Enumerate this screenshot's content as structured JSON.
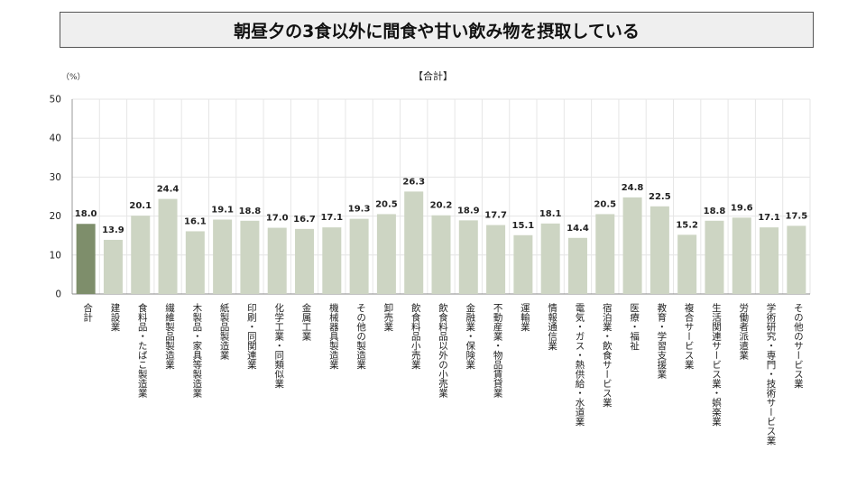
{
  "header": {
    "title": "朝昼夕の3食以外に間食や甘い飲み物を摂取している"
  },
  "chart_data": {
    "type": "bar",
    "title": "【合計】",
    "unit_label": "（%）",
    "ylim": [
      0,
      50
    ],
    "yticks": [
      0,
      10,
      20,
      30,
      40,
      50
    ],
    "grid": true,
    "highlight_color": "#7e8e6b",
    "bar_color": "#cdd5c3",
    "categories": [
      "合計",
      "建設業",
      "食料品・たばこ製造業",
      "繊維製品製造業",
      "木製品・家具等製造業",
      "紙製品製造業",
      "印刷・同関連業",
      "化学工業・同類似業",
      "金属工業",
      "機械器具製造業",
      "その他の製造業",
      "卸売業",
      "飲食料品小売業",
      "飲食料品以外の小売業",
      "金融業・保険業",
      "不動産業・物品賃貸業",
      "運輸業",
      "情報通信業",
      "電気・ガス・熱供給・水道業",
      "宿泊業・飲食サービス業",
      "医療・福祉",
      "教育・学習支援業",
      "複合サービス業",
      "生活関連サービス業・娯楽業",
      "労働者派遣業",
      "学術研究・専門・技術サービス業",
      "その他のサービス業"
    ],
    "values": [
      18.0,
      13.9,
      20.1,
      24.4,
      16.1,
      19.1,
      18.8,
      17.0,
      16.7,
      17.1,
      19.3,
      20.5,
      26.3,
      20.2,
      18.9,
      17.7,
      15.1,
      18.1,
      14.4,
      20.5,
      24.8,
      22.5,
      15.2,
      18.8,
      19.6,
      17.1,
      17.5
    ]
  }
}
